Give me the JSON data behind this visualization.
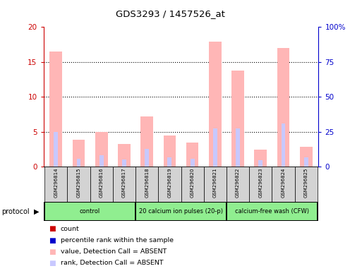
{
  "title": "GDS3293 / 1457526_at",
  "samples": [
    "GSM296814",
    "GSM296815",
    "GSM296816",
    "GSM296817",
    "GSM296818",
    "GSM296819",
    "GSM296820",
    "GSM296821",
    "GSM296822",
    "GSM296823",
    "GSM296824",
    "GSM296825"
  ],
  "value_absent": [
    16.5,
    3.9,
    5.0,
    3.3,
    7.2,
    4.5,
    3.5,
    17.9,
    13.8,
    2.4,
    17.0,
    2.8
  ],
  "rank_absent": [
    5.0,
    1.1,
    1.6,
    1.0,
    2.5,
    1.3,
    1.1,
    5.5,
    5.5,
    0.9,
    6.2,
    1.3
  ],
  "ylim_left": [
    0,
    20
  ],
  "ylim_right": [
    0,
    100
  ],
  "yticks_left": [
    0,
    5,
    10,
    15,
    20
  ],
  "yticks_right": [
    0,
    25,
    50,
    75,
    100
  ],
  "ytick_labels_right": [
    "0",
    "25",
    "50",
    "75",
    "100%"
  ],
  "protocol_groups": [
    {
      "label": "control",
      "start": 0,
      "end": 3,
      "color": "#90EE90"
    },
    {
      "label": "20 calcium ion pulses (20-p)",
      "start": 4,
      "end": 7,
      "color": "#90EE90"
    },
    {
      "label": "calcium-free wash (CFW)",
      "start": 8,
      "end": 11,
      "color": "#90EE90"
    }
  ],
  "color_value_absent": "#ffb6b6",
  "color_rank_absent": "#c8c8ff",
  "color_count": "#cc0000",
  "color_rank": "#0000cc",
  "left_ylabel_color": "#cc0000",
  "right_ylabel_color": "#0000cc",
  "legend_items": [
    {
      "color": "#cc0000",
      "label": "count"
    },
    {
      "color": "#0000cc",
      "label": "percentile rank within the sample"
    },
    {
      "color": "#ffb6b6",
      "label": "value, Detection Call = ABSENT"
    },
    {
      "color": "#c8c8ff",
      "label": "rank, Detection Call = ABSENT"
    }
  ]
}
